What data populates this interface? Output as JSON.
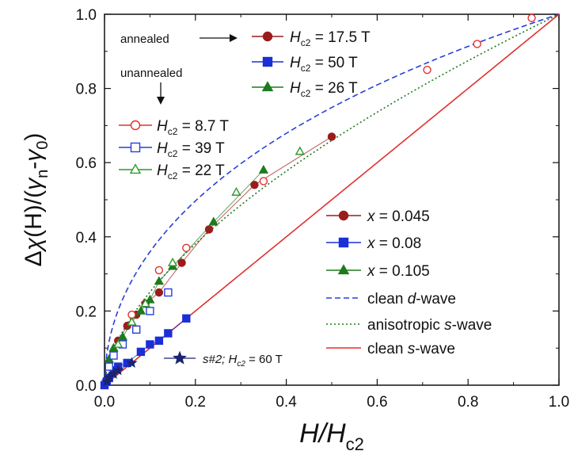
{
  "chart_data": {
    "type": "scatter",
    "xlabel": "H/Hc2",
    "ylabel": "Δχ(H)/(γn-γ0)",
    "xlim": [
      0.0,
      1.0
    ],
    "ylim": [
      0.0,
      1.0
    ],
    "x_ticks": [
      0.0,
      0.2,
      0.4,
      0.6,
      0.8,
      1.0
    ],
    "y_ticks": [
      0.0,
      0.2,
      0.4,
      0.6,
      0.8,
      1.0
    ],
    "x_tick_labels": [
      "0.0",
      "0.2",
      "0.4",
      "0.6",
      "0.8",
      "1.0"
    ],
    "y_tick_labels": [
      "0.0",
      "0.2",
      "0.4",
      "0.6",
      "0.8",
      "1.0"
    ],
    "grid": false,
    "annotations": {
      "annealed": "annealed",
      "unannealed": "unannealed"
    },
    "series": [
      {
        "name": "x = 0.045",
        "group": "annealed",
        "hc2": "17.5 T",
        "marker": "circle",
        "filled": true,
        "color": "#9b1c1c",
        "x": [
          0.01,
          0.02,
          0.03,
          0.05,
          0.07,
          0.09,
          0.12,
          0.17,
          0.23,
          0.33,
          0.5
        ],
        "y": [
          0.06,
          0.09,
          0.12,
          0.16,
          0.19,
          0.22,
          0.25,
          0.33,
          0.42,
          0.54,
          0.67
        ]
      },
      {
        "name": "x = 0.08",
        "group": "annealed",
        "hc2": "50 T",
        "marker": "square",
        "filled": true,
        "color": "#1a2fd6",
        "x": [
          0.0,
          0.005,
          0.01,
          0.02,
          0.03,
          0.05,
          0.08,
          0.1,
          0.12,
          0.14,
          0.18
        ],
        "y": [
          0.0,
          0.01,
          0.02,
          0.04,
          0.05,
          0.06,
          0.09,
          0.11,
          0.12,
          0.14,
          0.18
        ]
      },
      {
        "name": "x = 0.105",
        "group": "annealed",
        "hc2": "26 T",
        "marker": "triangle",
        "filled": true,
        "color": "#1e7a1e",
        "x": [
          0.01,
          0.02,
          0.04,
          0.06,
          0.08,
          0.1,
          0.12,
          0.15,
          0.24,
          0.35
        ],
        "y": [
          0.07,
          0.1,
          0.13,
          0.17,
          0.2,
          0.23,
          0.28,
          0.32,
          0.44,
          0.58
        ]
      },
      {
        "name": "Hc2 = 8.7 T",
        "group": "unannealed",
        "marker": "circle",
        "filled": false,
        "color": "#e03030",
        "x": [
          0.06,
          0.12,
          0.18,
          0.35,
          0.71,
          0.82,
          0.94
        ],
        "y": [
          0.19,
          0.31,
          0.37,
          0.55,
          0.85,
          0.92,
          0.99
        ]
      },
      {
        "name": "Hc2 = 39 T",
        "group": "unannealed",
        "marker": "square",
        "filled": false,
        "color": "#2a3fd8",
        "x": [
          0.01,
          0.02,
          0.04,
          0.07,
          0.1,
          0.14
        ],
        "y": [
          0.05,
          0.08,
          0.11,
          0.15,
          0.2,
          0.25
        ]
      },
      {
        "name": "Hc2 = 22 T",
        "group": "unannealed",
        "marker": "triangle",
        "filled": false,
        "color": "#2c9a2c",
        "x": [
          0.03,
          0.06,
          0.09,
          0.15,
          0.29,
          0.43
        ],
        "y": [
          0.11,
          0.17,
          0.22,
          0.33,
          0.52,
          0.63
        ]
      },
      {
        "name": "s#2; Hc2 = 60 T",
        "marker": "star",
        "filled": true,
        "color": "#1a2470",
        "x": [
          0.005,
          0.01,
          0.02,
          0.03,
          0.06
        ],
        "y": [
          0.01,
          0.02,
          0.03,
          0.04,
          0.06
        ]
      }
    ],
    "lines": [
      {
        "name": "clean d-wave",
        "style": "dashed",
        "color": "#2a3fd8",
        "model": "d"
      },
      {
        "name": "anisotropic s-wave",
        "style": "dotted",
        "color": "#1e7a1e",
        "model": "aniso"
      },
      {
        "name": "clean s-wave",
        "style": "solid",
        "color": "#e03030",
        "model": "s"
      }
    ]
  }
}
